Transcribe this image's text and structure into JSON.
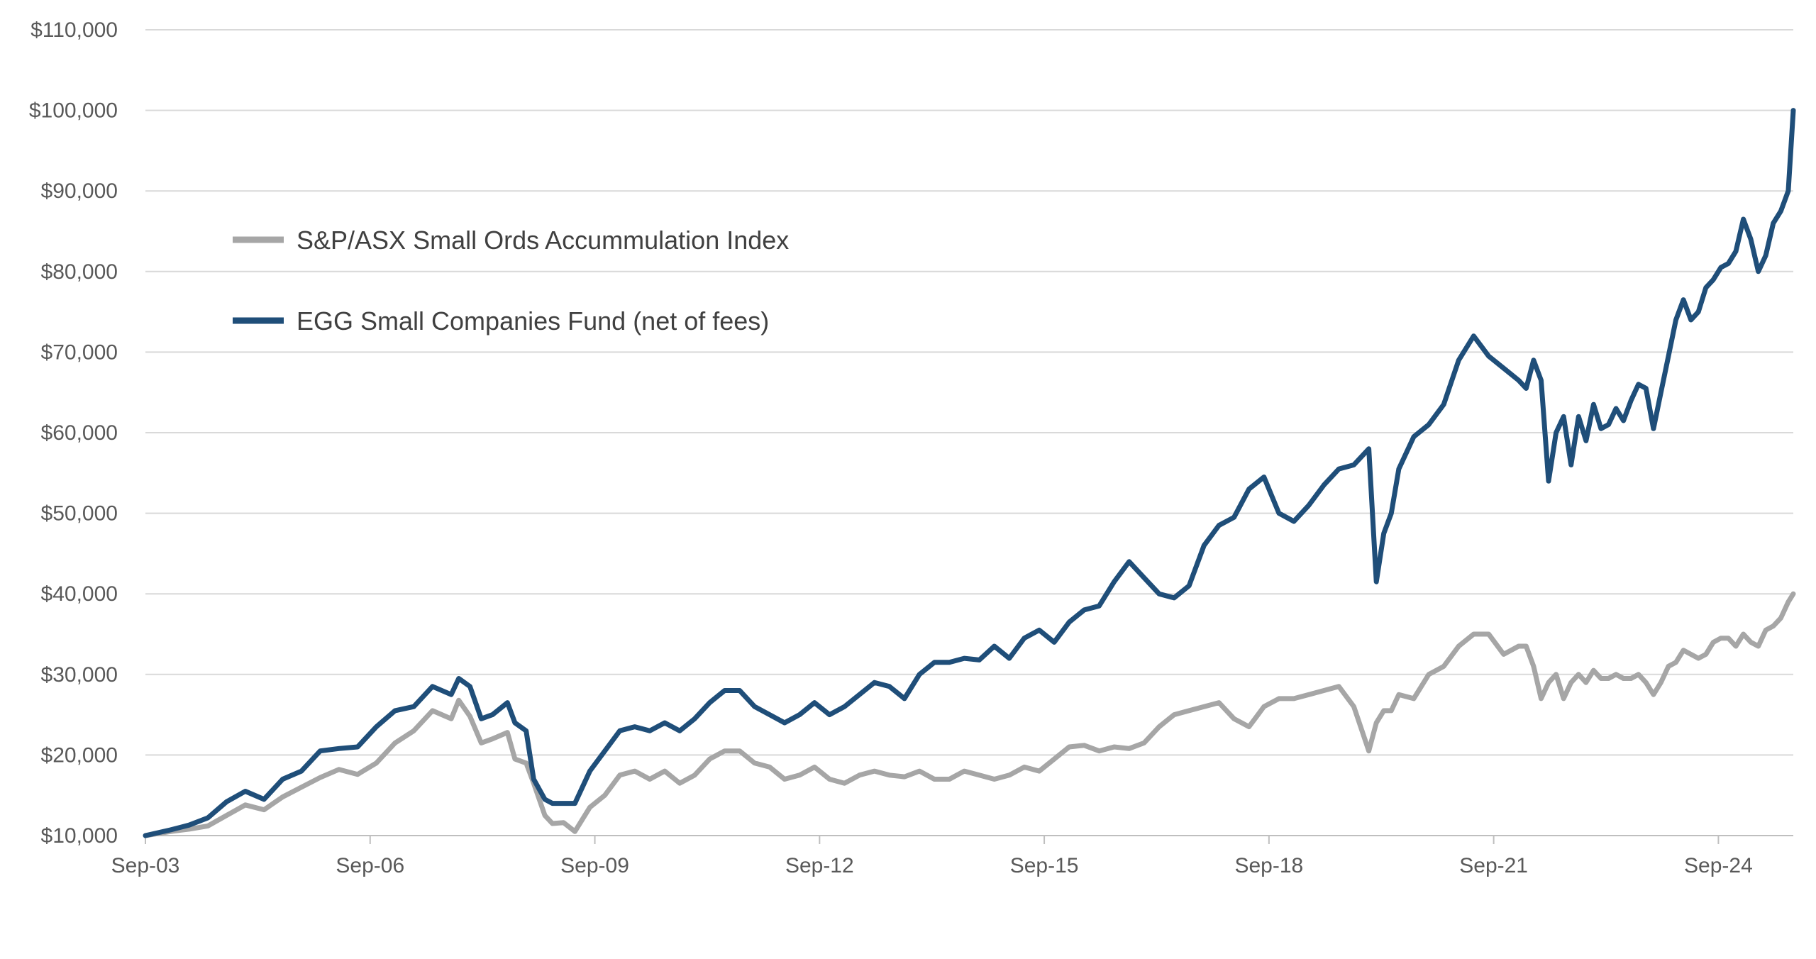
{
  "chart_data": {
    "type": "line",
    "title": "",
    "xlabel": "",
    "ylabel": "",
    "ylim": [
      10000,
      110000
    ],
    "y_ticks": [
      10000,
      20000,
      30000,
      40000,
      50000,
      60000,
      70000,
      80000,
      90000,
      100000,
      110000
    ],
    "y_tick_labels": [
      "$10,000",
      "$20,000",
      "$30,000",
      "$40,000",
      "$50,000",
      "$60,000",
      "$70,000",
      "$80,000",
      "$90,000",
      "$100,000",
      "$110,000"
    ],
    "xlim": [
      2003.667,
      2025.667
    ],
    "x_ticks": [
      2003.667,
      2006.667,
      2009.667,
      2012.667,
      2015.667,
      2018.667,
      2021.667,
      2024.667
    ],
    "x_tick_labels": [
      "Sep-03",
      "Sep-06",
      "Sep-09",
      "Sep-12",
      "Sep-15",
      "Sep-18",
      "Sep-21",
      "Sep-24"
    ],
    "grid": true,
    "legend": "upper-left",
    "series": [
      {
        "name": "S&P/ASX Small Ords Accummulation Index",
        "color": "#a6a6a6",
        "x": [
          2003.667,
          2004.0,
          2004.25,
          2004.5,
          2004.75,
          2005.0,
          2005.25,
          2005.5,
          2005.75,
          2006.0,
          2006.25,
          2006.5,
          2006.75,
          2007.0,
          2007.25,
          2007.5,
          2007.75,
          2007.85,
          2008.0,
          2008.15,
          2008.3,
          2008.5,
          2008.6,
          2008.75,
          2008.85,
          2009.0,
          2009.1,
          2009.25,
          2009.4,
          2009.6,
          2009.8,
          2010.0,
          2010.2,
          2010.4,
          2010.6,
          2010.8,
          2011.0,
          2011.2,
          2011.4,
          2011.6,
          2011.8,
          2012.0,
          2012.2,
          2012.4,
          2012.6,
          2012.8,
          2013.0,
          2013.2,
          2013.4,
          2013.6,
          2013.8,
          2014.0,
          2014.2,
          2014.4,
          2014.6,
          2014.8,
          2015.0,
          2015.2,
          2015.4,
          2015.6,
          2015.8,
          2016.0,
          2016.2,
          2016.4,
          2016.6,
          2016.8,
          2017.0,
          2017.2,
          2017.4,
          2017.6,
          2017.8,
          2018.0,
          2018.2,
          2018.4,
          2018.6,
          2018.8,
          2019.0,
          2019.2,
          2019.4,
          2019.6,
          2019.8,
          2020.0,
          2020.1,
          2020.2,
          2020.3,
          2020.4,
          2020.6,
          2020.8,
          2021.0,
          2021.2,
          2021.4,
          2021.6,
          2021.8,
          2022.0,
          2022.1,
          2022.2,
          2022.3,
          2022.4,
          2022.5,
          2022.6,
          2022.7,
          2022.8,
          2022.9,
          2023.0,
          2023.1,
          2023.2,
          2023.3,
          2023.4,
          2023.5,
          2023.6,
          2023.7,
          2023.8,
          2023.9,
          2024.0,
          2024.1,
          2024.2,
          2024.3,
          2024.4,
          2024.5,
          2024.6,
          2024.7,
          2024.8,
          2024.9,
          2025.0,
          2025.1,
          2025.2,
          2025.3,
          2025.4,
          2025.5,
          2025.6,
          2025.667
        ],
        "y": [
          10000,
          10500,
          10800,
          11200,
          12500,
          13800,
          13200,
          14800,
          16000,
          17200,
          18200,
          17600,
          19000,
          21500,
          23000,
          25500,
          24500,
          26800,
          24800,
          21500,
          22000,
          22800,
          19500,
          19000,
          16500,
          12500,
          11500,
          11600,
          10500,
          13500,
          15000,
          17500,
          18000,
          17000,
          18000,
          16500,
          17500,
          19500,
          20500,
          20500,
          19000,
          18500,
          17000,
          17500,
          18500,
          17000,
          16500,
          17500,
          18000,
          17500,
          17300,
          18000,
          17000,
          17000,
          18000,
          17500,
          17000,
          17500,
          18500,
          18000,
          19500,
          21000,
          21200,
          20500,
          21000,
          20800,
          21500,
          23500,
          25000,
          25500,
          26000,
          26500,
          24500,
          23500,
          26000,
          27000,
          27000,
          27500,
          28000,
          28500,
          26000,
          20500,
          24000,
          25500,
          25500,
          27500,
          27000,
          30000,
          31000,
          33500,
          35000,
          35000,
          32500,
          33500,
          33500,
          31000,
          27000,
          29000,
          30000,
          27000,
          29000,
          30000,
          29000,
          30500,
          29500,
          29500,
          30000,
          29500,
          29500,
          30000,
          29000,
          27500,
          29000,
          31000,
          31500,
          33000,
          32500,
          32000,
          32500,
          34000,
          34500,
          34500,
          33500,
          35000,
          34000,
          33500,
          35500,
          36000,
          37000,
          39000,
          40000
        ]
      },
      {
        "name": "EGG Small Companies Fund (net of fees)",
        "color": "#1f4e79",
        "x": [
          2003.667,
          2004.0,
          2004.25,
          2004.5,
          2004.75,
          2005.0,
          2005.25,
          2005.5,
          2005.75,
          2006.0,
          2006.25,
          2006.5,
          2006.75,
          2007.0,
          2007.25,
          2007.5,
          2007.75,
          2007.85,
          2008.0,
          2008.15,
          2008.3,
          2008.5,
          2008.6,
          2008.75,
          2008.85,
          2009.0,
          2009.1,
          2009.25,
          2009.4,
          2009.6,
          2009.8,
          2010.0,
          2010.2,
          2010.4,
          2010.6,
          2010.8,
          2011.0,
          2011.2,
          2011.4,
          2011.6,
          2011.8,
          2012.0,
          2012.2,
          2012.4,
          2012.6,
          2012.8,
          2013.0,
          2013.2,
          2013.4,
          2013.6,
          2013.8,
          2014.0,
          2014.2,
          2014.4,
          2014.6,
          2014.8,
          2015.0,
          2015.2,
          2015.4,
          2015.6,
          2015.8,
          2016.0,
          2016.2,
          2016.4,
          2016.6,
          2016.8,
          2017.0,
          2017.2,
          2017.4,
          2017.6,
          2017.8,
          2018.0,
          2018.2,
          2018.4,
          2018.6,
          2018.8,
          2019.0,
          2019.2,
          2019.4,
          2019.6,
          2019.8,
          2020.0,
          2020.1,
          2020.2,
          2020.3,
          2020.4,
          2020.6,
          2020.8,
          2021.0,
          2021.2,
          2021.4,
          2021.6,
          2021.8,
          2022.0,
          2022.1,
          2022.2,
          2022.3,
          2022.4,
          2022.5,
          2022.6,
          2022.7,
          2022.8,
          2022.9,
          2023.0,
          2023.1,
          2023.2,
          2023.3,
          2023.4,
          2023.5,
          2023.6,
          2023.7,
          2023.8,
          2023.9,
          2024.0,
          2024.1,
          2024.2,
          2024.3,
          2024.4,
          2024.5,
          2024.6,
          2024.7,
          2024.8,
          2024.9,
          2025.0,
          2025.1,
          2025.2,
          2025.3,
          2025.4,
          2025.5,
          2025.6,
          2025.667
        ],
        "y": [
          10000,
          10700,
          11300,
          12200,
          14200,
          15500,
          14500,
          17000,
          18000,
          20500,
          20800,
          21000,
          23500,
          25500,
          26000,
          28500,
          27500,
          29500,
          28500,
          24500,
          25000,
          26500,
          24000,
          23000,
          17000,
          14500,
          14000,
          14000,
          14000,
          18000,
          20500,
          23000,
          23500,
          23000,
          24000,
          23000,
          24500,
          26500,
          28000,
          28000,
          26000,
          25000,
          24000,
          25000,
          26500,
          25000,
          26000,
          27500,
          29000,
          28500,
          27000,
          30000,
          31500,
          31500,
          32000,
          31800,
          33500,
          32000,
          34500,
          35500,
          34000,
          36500,
          38000,
          38500,
          41500,
          44000,
          42000,
          40000,
          39500,
          41000,
          46000,
          48500,
          49500,
          53000,
          54500,
          50000,
          49000,
          51000,
          53500,
          55500,
          56000,
          58000,
          41500,
          47500,
          50000,
          55500,
          59500,
          61000,
          63500,
          69000,
          72000,
          69500,
          68000,
          66500,
          65500,
          69000,
          66500,
          54000,
          60000,
          62000,
          56000,
          62000,
          59000,
          63500,
          60500,
          61000,
          63000,
          61500,
          64000,
          66000,
          65500,
          60500,
          65000,
          69500,
          74000,
          76500,
          74000,
          75000,
          78000,
          79000,
          80500,
          81000,
          82500,
          86500,
          84000,
          80000,
          82000,
          86000,
          87500,
          90000,
          100000
        ]
      }
    ]
  }
}
